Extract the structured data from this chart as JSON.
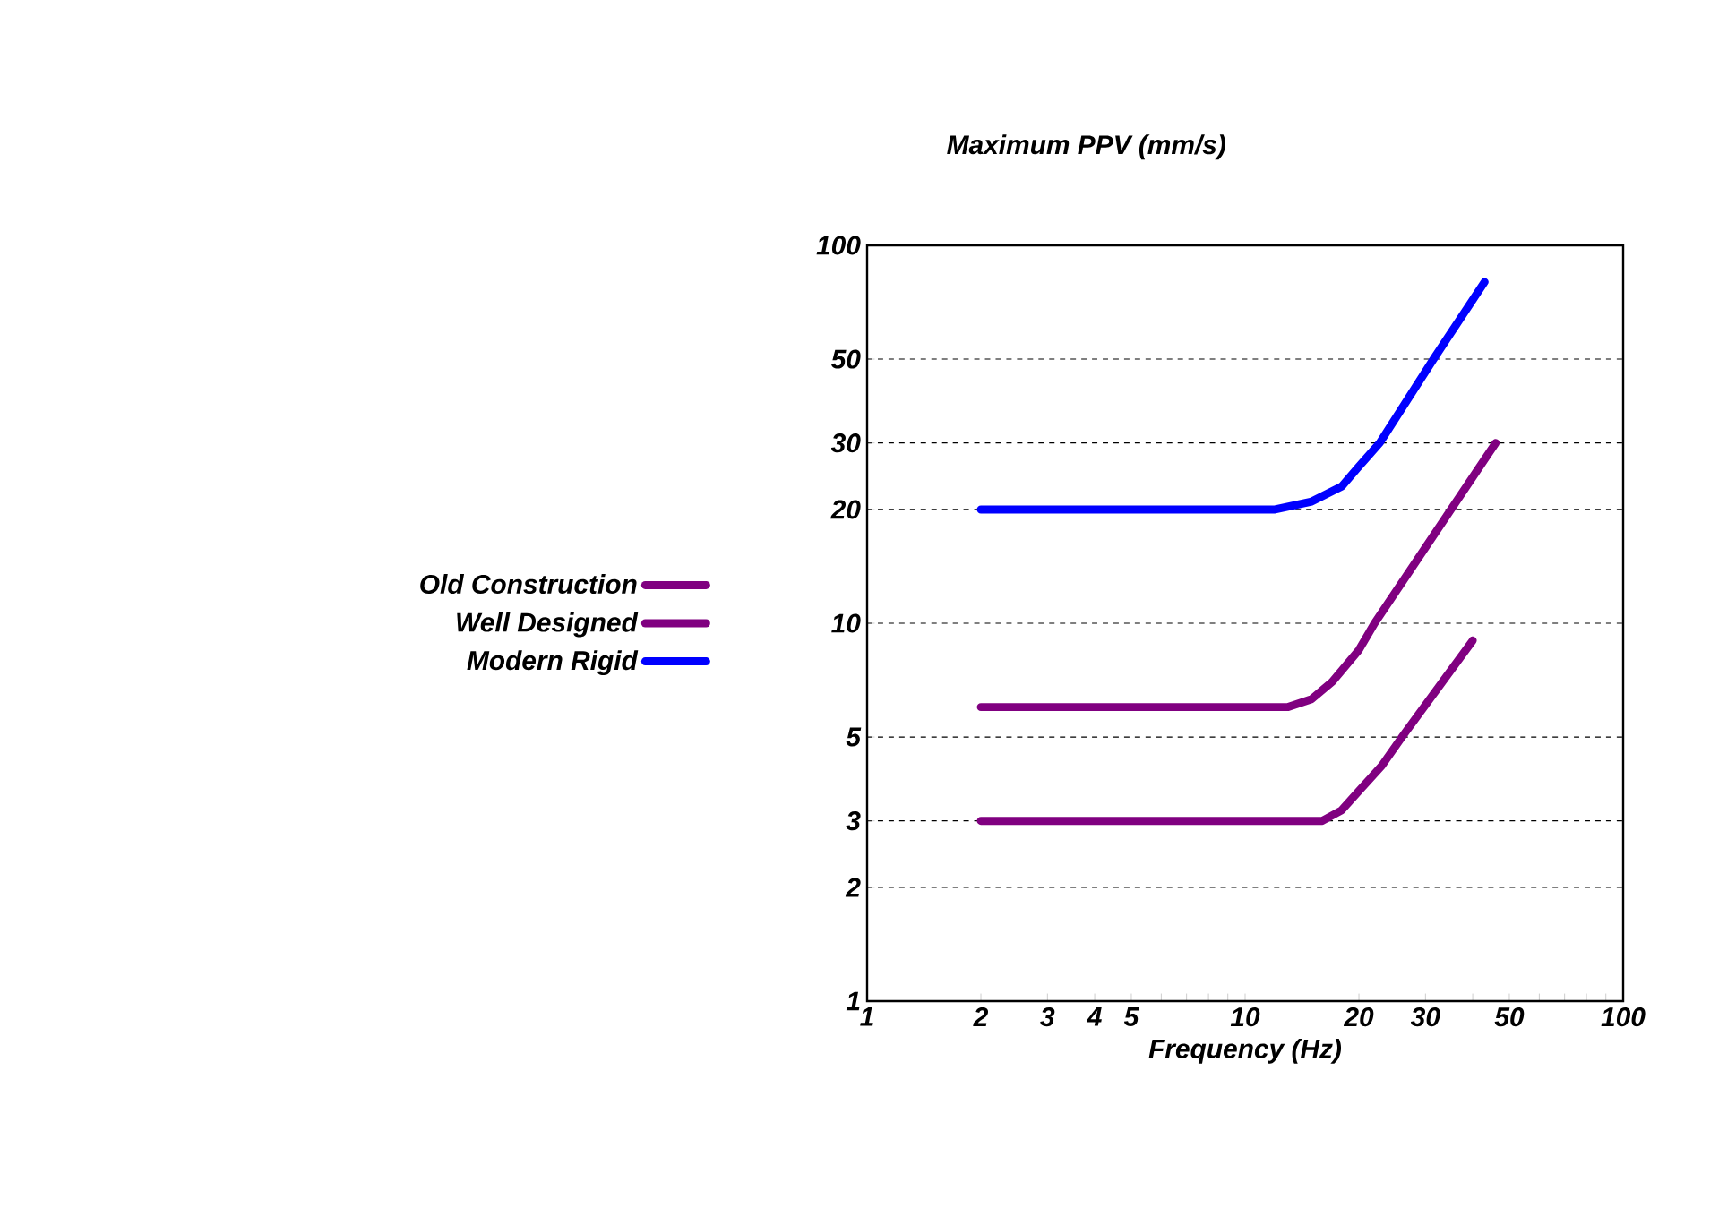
{
  "chart_data": {
    "type": "line",
    "ylabel": "Maximum PPV (mm/s)",
    "xlabel": "Frequency (Hz)",
    "log": "xy",
    "xlim": [
      1,
      100
    ],
    "ylim": [
      1,
      100
    ],
    "xticks": [
      1,
      2,
      3,
      4,
      5,
      {
        "value": 6,
        "label": null
      },
      {
        "value": 7,
        "label": null
      },
      {
        "value": 8,
        "label": null
      },
      {
        "value": 9,
        "label": null
      },
      10,
      20,
      30,
      {
        "value": 40,
        "label": null
      },
      50,
      {
        "value": 60,
        "label": null
      },
      {
        "value": 70,
        "label": null
      },
      {
        "value": 80,
        "label": null
      },
      {
        "value": 90,
        "label": null
      },
      100
    ],
    "yticks": [
      1,
      2,
      3,
      5,
      10,
      20,
      30,
      50,
      100
    ],
    "grid": "y",
    "legend": "left",
    "line_style": "solid",
    "marker": "none",
    "series": [
      {
        "name": "Old Construction",
        "color": "#800080",
        "x": [
          2,
          16,
          18,
          20,
          23,
          26,
          40
        ],
        "values": [
          3,
          3,
          3.2,
          3.6,
          4.2,
          5,
          9
        ]
      },
      {
        "name": "Well Designed",
        "color": "#800080",
        "x": [
          2,
          13,
          15,
          17,
          20,
          22,
          46
        ],
        "values": [
          6,
          6,
          6.3,
          7,
          8.5,
          10,
          30
        ]
      },
      {
        "name": "Modern Rigid",
        "color": "#0000ff",
        "x": [
          2,
          12,
          15,
          18,
          20,
          22.7,
          31.5,
          43
        ],
        "values": [
          20,
          20,
          21,
          23,
          26,
          30,
          50,
          80
        ]
      }
    ]
  }
}
